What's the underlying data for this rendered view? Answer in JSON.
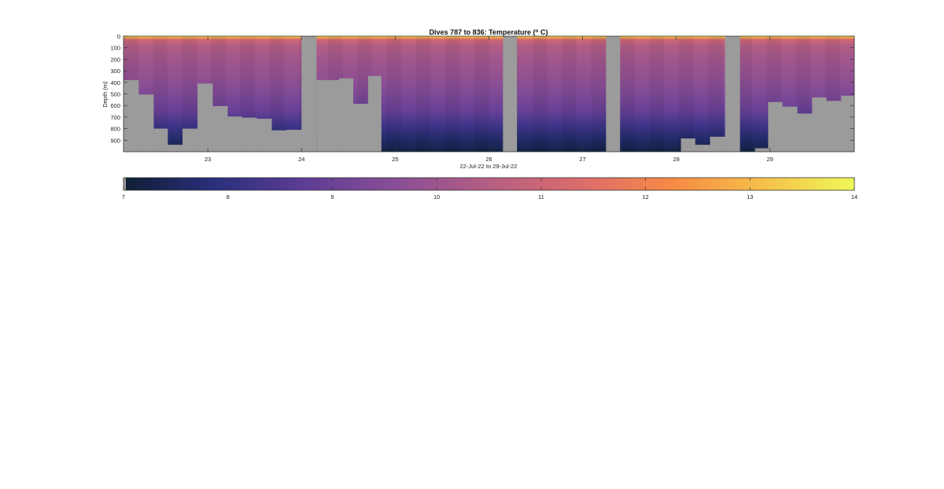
{
  "chart_data": {
    "type": "heatmap",
    "title": {
      "main": "Dives 787 to 836: Temperature (",
      "superscript": "o",
      "suffix": " C)"
    },
    "ylabel": "Depth (m)",
    "xlabel": "22-Jul-22 to 29-Jul-22",
    "x_range_days": [
      22.1,
      29.9
    ],
    "y_range_m": [
      0,
      1000
    ],
    "y_reversed": true,
    "x_ticks": [
      {
        "value": 23,
        "label": "23"
      },
      {
        "value": 24,
        "label": "24"
      },
      {
        "value": 25,
        "label": "25"
      },
      {
        "value": 26,
        "label": "26"
      },
      {
        "value": 27,
        "label": "27"
      },
      {
        "value": 28,
        "label": "28"
      },
      {
        "value": 29,
        "label": "29"
      }
    ],
    "y_ticks": [
      {
        "value": 0,
        "label": "0"
      },
      {
        "value": 100,
        "label": "100"
      },
      {
        "value": 200,
        "label": "200"
      },
      {
        "value": 300,
        "label": "300"
      },
      {
        "value": 400,
        "label": "400"
      },
      {
        "value": 500,
        "label": "500"
      },
      {
        "value": 600,
        "label": "600"
      },
      {
        "value": 700,
        "label": "700"
      },
      {
        "value": 800,
        "label": "800"
      },
      {
        "value": 900,
        "label": "900"
      }
    ],
    "colorbar": {
      "min": 7,
      "max": 14,
      "orientation": "horizontal",
      "ticks": [
        {
          "value": 7,
          "label": "7"
        },
        {
          "value": 8,
          "label": "8"
        },
        {
          "value": 9,
          "label": "9"
        },
        {
          "value": 10,
          "label": "10"
        },
        {
          "value": 11,
          "label": "11"
        },
        {
          "value": 12,
          "label": "12"
        },
        {
          "value": 13,
          "label": "13"
        },
        {
          "value": 14,
          "label": "14"
        }
      ],
      "colormap": [
        "#0d1f33",
        "#2a2f7e",
        "#5e3d96",
        "#8a4e96",
        "#b45e83",
        "#db6c6c",
        "#f68a45",
        "#f6c04a",
        "#eef858"
      ]
    },
    "no_data_color": "#9b9b9b",
    "profile_temperature_stops": [
      {
        "depth": 0,
        "temp": 13.9
      },
      {
        "depth": 12,
        "temp": 12.6
      },
      {
        "depth": 30,
        "temp": 11.1
      },
      {
        "depth": 80,
        "temp": 10.5
      },
      {
        "depth": 200,
        "temp": 10.1
      },
      {
        "depth": 350,
        "temp": 9.8
      },
      {
        "depth": 500,
        "temp": 9.4
      },
      {
        "depth": 650,
        "temp": 8.9
      },
      {
        "depth": 780,
        "temp": 8.2
      },
      {
        "depth": 900,
        "temp": 7.6
      },
      {
        "depth": 1000,
        "temp": 7.2
      }
    ],
    "gaps": [
      {
        "x0": 24.0,
        "x1": 24.16
      },
      {
        "x0": 26.15,
        "x1": 26.3
      },
      {
        "x0": 27.25,
        "x1": 27.4
      },
      {
        "x0": 28.52,
        "x1": 28.68
      }
    ],
    "bottom_depth_segments": [
      {
        "x0": 22.1,
        "x1": 22.26,
        "depth": 380
      },
      {
        "x0": 22.26,
        "x1": 22.42,
        "depth": 505
      },
      {
        "x0": 22.42,
        "x1": 22.57,
        "depth": 800
      },
      {
        "x0": 22.57,
        "x1": 22.73,
        "depth": 940
      },
      {
        "x0": 22.73,
        "x1": 22.89,
        "depth": 800
      },
      {
        "x0": 22.89,
        "x1": 23.05,
        "depth": 410
      },
      {
        "x0": 23.05,
        "x1": 23.21,
        "depth": 605
      },
      {
        "x0": 23.21,
        "x1": 23.36,
        "depth": 695
      },
      {
        "x0": 23.36,
        "x1": 23.52,
        "depth": 705
      },
      {
        "x0": 23.52,
        "x1": 23.68,
        "depth": 715
      },
      {
        "x0": 23.68,
        "x1": 23.84,
        "depth": 815
      },
      {
        "x0": 23.84,
        "x1": 24.0,
        "depth": 810
      },
      {
        "x0": 24.16,
        "x1": 24.38,
        "depth": 380
      },
      {
        "x0": 24.38,
        "x1": 24.4,
        "depth": 380
      },
      {
        "x0": 24.4,
        "x1": 24.55,
        "depth": 365
      },
      {
        "x0": 24.55,
        "x1": 24.71,
        "depth": 585
      },
      {
        "x0": 24.71,
        "x1": 24.85,
        "depth": 345
      },
      {
        "x0": 24.85,
        "x1": 26.15,
        "depth": 1000
      },
      {
        "x0": 26.3,
        "x1": 27.0,
        "depth": 1000
      },
      {
        "x0": 27.0,
        "x1": 27.25,
        "depth": 1000
      },
      {
        "x0": 27.4,
        "x1": 28.05,
        "depth": 1000
      },
      {
        "x0": 28.05,
        "x1": 28.2,
        "depth": 885
      },
      {
        "x0": 28.2,
        "x1": 28.36,
        "depth": 940
      },
      {
        "x0": 28.36,
        "x1": 28.52,
        "depth": 870
      },
      {
        "x0": 28.68,
        "x1": 28.84,
        "depth": 1000
      },
      {
        "x0": 28.84,
        "x1": 28.98,
        "depth": 970
      },
      {
        "x0": 28.98,
        "x1": 29.13,
        "depth": 570
      },
      {
        "x0": 29.13,
        "x1": 29.29,
        "depth": 610
      },
      {
        "x0": 29.29,
        "x1": 29.45,
        "depth": 670
      },
      {
        "x0": 29.45,
        "x1": 29.6,
        "depth": 530
      },
      {
        "x0": 29.6,
        "x1": 29.76,
        "depth": 560
      },
      {
        "x0": 29.76,
        "x1": 29.9,
        "depth": 515
      }
    ],
    "grid": false,
    "legend": "none"
  }
}
